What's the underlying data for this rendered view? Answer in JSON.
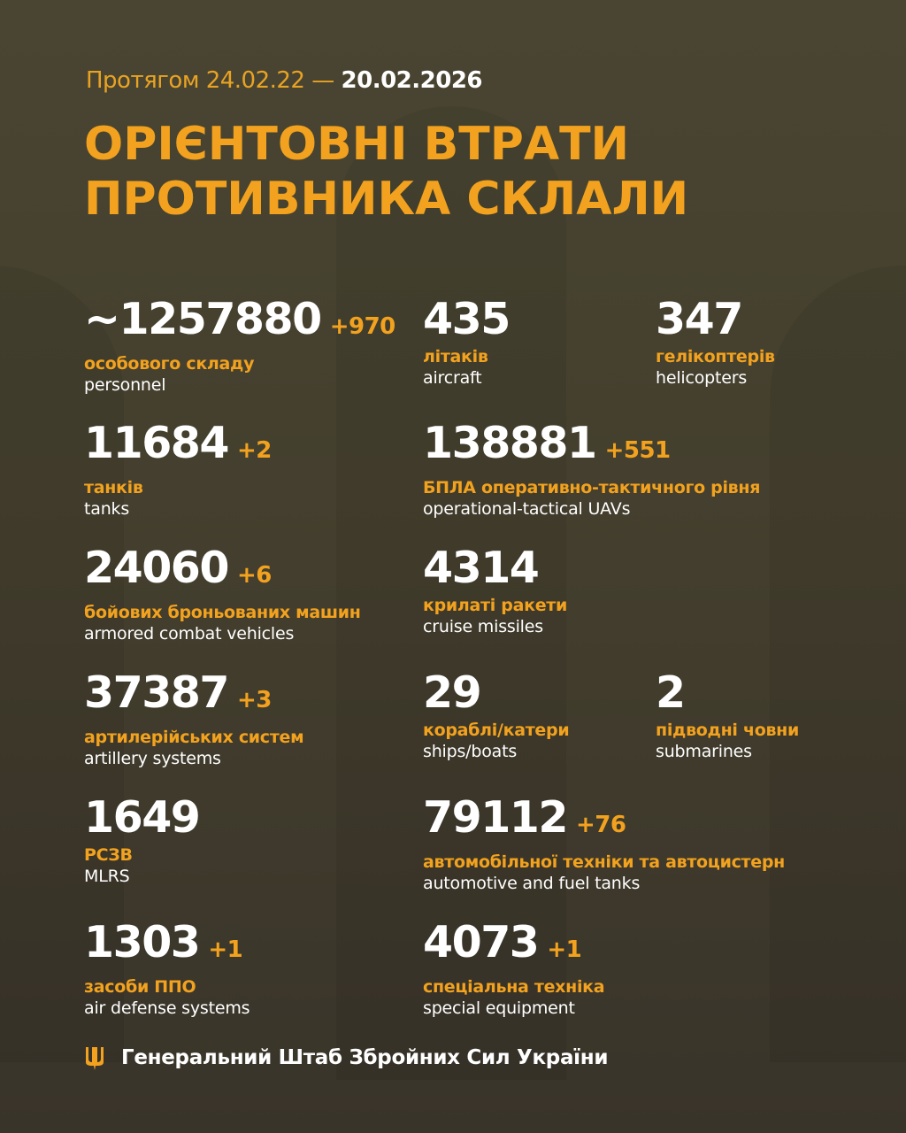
{
  "header": {
    "period_prefix": "Протягом 24.02.22 —",
    "period_end": "20.02.2026",
    "title_line1": "ОРІЄНТОВНІ ВТРАТИ",
    "title_line2": "ПРОТИВНИКА СКЛАЛИ"
  },
  "stats": [
    {
      "value": "~1257880",
      "delta": "+970",
      "ua": "особового складу",
      "en": "personnel"
    },
    {
      "value": "435",
      "delta": "",
      "ua": "літаків",
      "en": "aircraft"
    },
    {
      "value": "347",
      "delta": "",
      "ua": "гелікоптерів",
      "en": "helicopters"
    },
    {
      "value": "11684",
      "delta": "+2",
      "ua": "танків",
      "en": "tanks"
    },
    {
      "value": "138881",
      "delta": "+551",
      "ua": "БПЛА оперативно-тактичного рівня",
      "en": "operational-tactical UAVs"
    },
    {
      "value": "24060",
      "delta": "+6",
      "ua": "бойових броньованих машин",
      "en": "armored combat vehicles"
    },
    {
      "value": "4314",
      "delta": "",
      "ua": "крилаті ракети",
      "en": "cruise missiles"
    },
    {
      "value": "37387",
      "delta": "+3",
      "ua": "артилерійських систем",
      "en": "artillery systems"
    },
    {
      "value": "29",
      "delta": "",
      "ua": "кораблі/катери",
      "en": "ships/boats"
    },
    {
      "value": "2",
      "delta": "",
      "ua": "підводні човни",
      "en": "submarines"
    },
    {
      "value": "1649",
      "delta": "",
      "ua": "РСЗВ",
      "en": "MLRS"
    },
    {
      "value": "79112",
      "delta": "+76",
      "ua": "автомобільної техніки та автоцистерн",
      "en": "automotive and fuel tanks"
    },
    {
      "value": "1303",
      "delta": "+1",
      "ua": "засоби ППО",
      "en": "air defense systems"
    },
    {
      "value": "4073",
      "delta": "+1",
      "ua": "спеціальна техніка",
      "en": "special equipment"
    }
  ],
  "footer": {
    "icon": "trident-icon",
    "text": "Генеральний Штаб Збройних Сил України"
  },
  "colors": {
    "accent": "#f2a21e",
    "background": "#46412f",
    "text": "#ffffff"
  }
}
